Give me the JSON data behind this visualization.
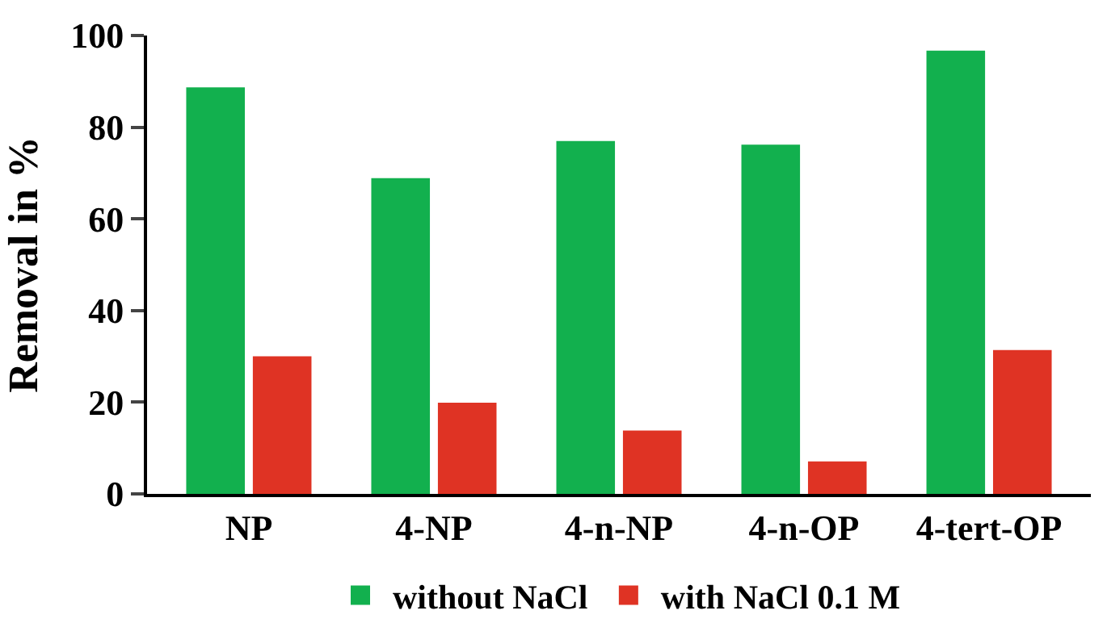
{
  "chart_data": {
    "type": "bar",
    "ylabel": "Removal in %",
    "categories": [
      "NP",
      "4-NP",
      "4-n-NP",
      "4-n-OP",
      "4-tert-OP"
    ],
    "series": [
      {
        "name": "without NaCl",
        "color": "#12b04e",
        "values": [
          88.7,
          68.9,
          77.0,
          76.2,
          96.7
        ]
      },
      {
        "name": "with NaCl 0.1 M",
        "color": "#df3324",
        "values": [
          30.0,
          19.9,
          13.8,
          7.1,
          31.4
        ]
      }
    ],
    "ylim": [
      0,
      100
    ],
    "yticks": [
      0,
      20,
      40,
      60,
      80,
      100
    ],
    "legend": "bottom"
  }
}
